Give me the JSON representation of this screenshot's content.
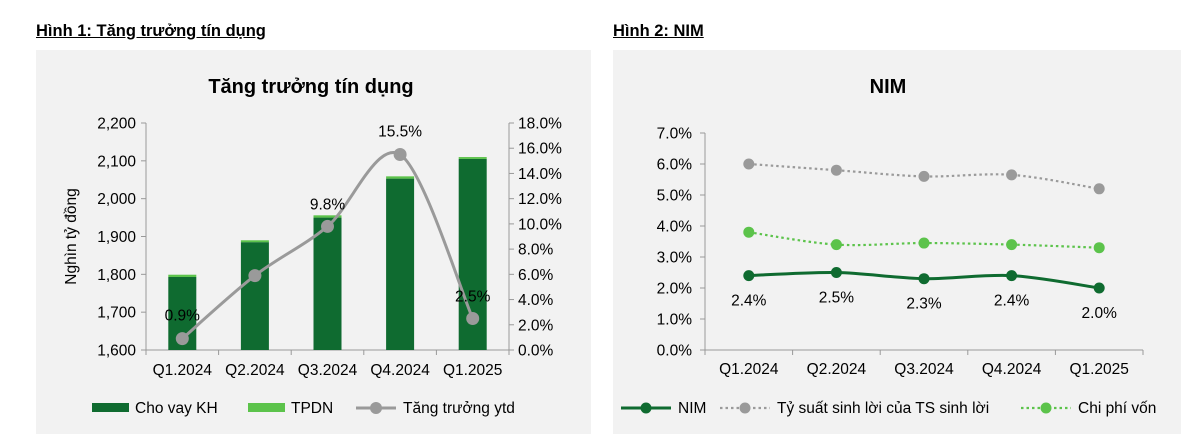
{
  "headings": {
    "fig1": "Hình 1: Tăng trưởng tín dụng",
    "fig2": "Hình 2: NIM"
  },
  "colors": {
    "dark_green": "#0f6b30",
    "light_green": "#5cc34b",
    "gray": "#9a9a9a",
    "background": "#f2f2f2"
  },
  "chart_data": [
    {
      "type": "bar",
      "title": "Tăng trưởng tín dụng",
      "xlabel": "",
      "ylabel": "Nghìn tỷ đồng",
      "categories": [
        "Q1.2024",
        "Q2.2024",
        "Q3.2024",
        "Q4.2024",
        "Q1.2025"
      ],
      "ylim": [
        1600,
        2200
      ],
      "yticks": [
        "1,600",
        "1,700",
        "1,800",
        "1,900",
        "2,000",
        "2,100",
        "2,200"
      ],
      "y2lim": [
        0,
        18
      ],
      "y2ticks": [
        "0.0%",
        "2.0%",
        "4.0%",
        "6.0%",
        "8.0%",
        "10.0%",
        "12.0%",
        "14.0%",
        "16.0%",
        "18.0%"
      ],
      "stacked": true,
      "series": [
        {
          "name": "Cho vay KH",
          "kind": "bar",
          "color": "#0f6b30",
          "values": [
            1793,
            1885,
            1950,
            2053,
            2105
          ]
        },
        {
          "name": "TPDN",
          "kind": "bar",
          "color": "#5cc34b",
          "values": [
            6,
            5,
            6,
            6,
            5
          ]
        },
        {
          "name": "Tăng trưởng ytd",
          "kind": "line",
          "axis": "right",
          "color": "#9a9a9a",
          "values": [
            0.9,
            5.9,
            9.8,
            15.5,
            2.5
          ],
          "labels": [
            "0.9%",
            "",
            "9.8%",
            "15.5%",
            "2.5%"
          ]
        }
      ],
      "legend": "bottom",
      "grid": false
    },
    {
      "type": "line",
      "title": "NIM",
      "xlabel": "",
      "ylabel": "",
      "categories": [
        "Q1.2024",
        "Q2.2024",
        "Q3.2024",
        "Q4.2024",
        "Q1.2025"
      ],
      "ylim": [
        0,
        7
      ],
      "yticks": [
        "0.0%",
        "1.0%",
        "2.0%",
        "3.0%",
        "4.0%",
        "5.0%",
        "6.0%",
        "7.0%"
      ],
      "series": [
        {
          "name": "NIM",
          "color": "#0f6b30",
          "style": "solid",
          "values": [
            2.4,
            2.5,
            2.3,
            2.4,
            2.0
          ],
          "labels": [
            "2.4%",
            "2.5%",
            "2.3%",
            "2.4%",
            "2.0%"
          ]
        },
        {
          "name": "Tỷ suất sinh lời của TS sinh lời",
          "color": "#9a9a9a",
          "style": "dotted",
          "values": [
            6.0,
            5.8,
            5.6,
            5.65,
            5.2
          ]
        },
        {
          "name": "Chi phí vốn",
          "color": "#5cc34b",
          "style": "dotted",
          "values": [
            3.8,
            3.4,
            3.45,
            3.4,
            3.3
          ]
        }
      ],
      "legend": "bottom",
      "grid": false
    }
  ]
}
